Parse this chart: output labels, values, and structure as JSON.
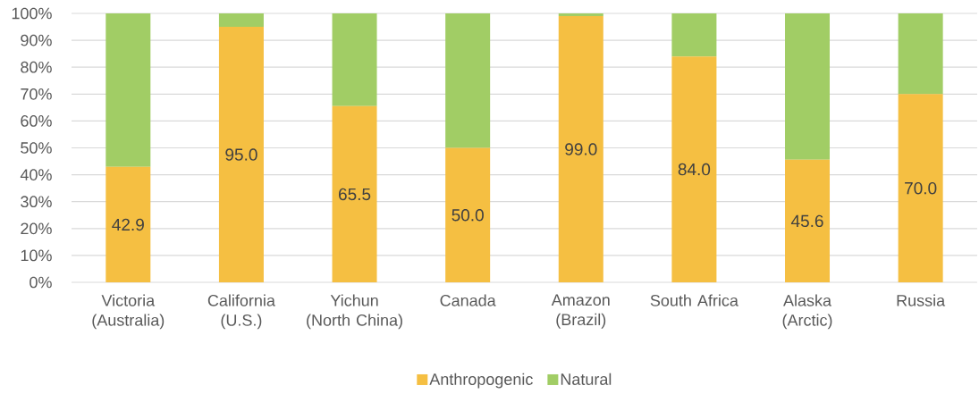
{
  "chart_data": {
    "type": "bar",
    "stacked": true,
    "categories": [
      "Victoria (Australia)",
      "California (U.S.)",
      "Yichun (North China)",
      "Canada",
      "Amazon (Brazil)",
      "South Africa",
      "Alaska (Arctic)",
      "Russia"
    ],
    "series": [
      {
        "name": "Anthropogenic",
        "color": "#f5bf42",
        "values": [
          42.9,
          95.0,
          65.5,
          50.0,
          99.0,
          84.0,
          45.6,
          70.0
        ],
        "value_labels": [
          "42.9",
          "95.0",
          "65.5",
          "50.0",
          "99.0",
          "84.0",
          "45.6",
          "70.0"
        ]
      },
      {
        "name": "Natural",
        "color": "#a1cd65",
        "values": [
          57.1,
          5.0,
          34.5,
          50.0,
          1.0,
          16.0,
          54.4,
          30.0
        ]
      }
    ],
    "ylim": [
      0,
      100
    ],
    "yticks": [
      {
        "value": 0,
        "label": "0%"
      },
      {
        "value": 10,
        "label": "10%"
      },
      {
        "value": 20,
        "label": "20%"
      },
      {
        "value": 30,
        "label": "30%"
      },
      {
        "value": 40,
        "label": "40%"
      },
      {
        "value": 50,
        "label": "50%"
      },
      {
        "value": 60,
        "label": "60%"
      },
      {
        "value": 70,
        "label": "70%"
      },
      {
        "value": 80,
        "label": "80%"
      },
      {
        "value": 90,
        "label": "90%"
      },
      {
        "value": 100,
        "label": "100%"
      }
    ],
    "grid": "y",
    "legend": "bottom"
  }
}
